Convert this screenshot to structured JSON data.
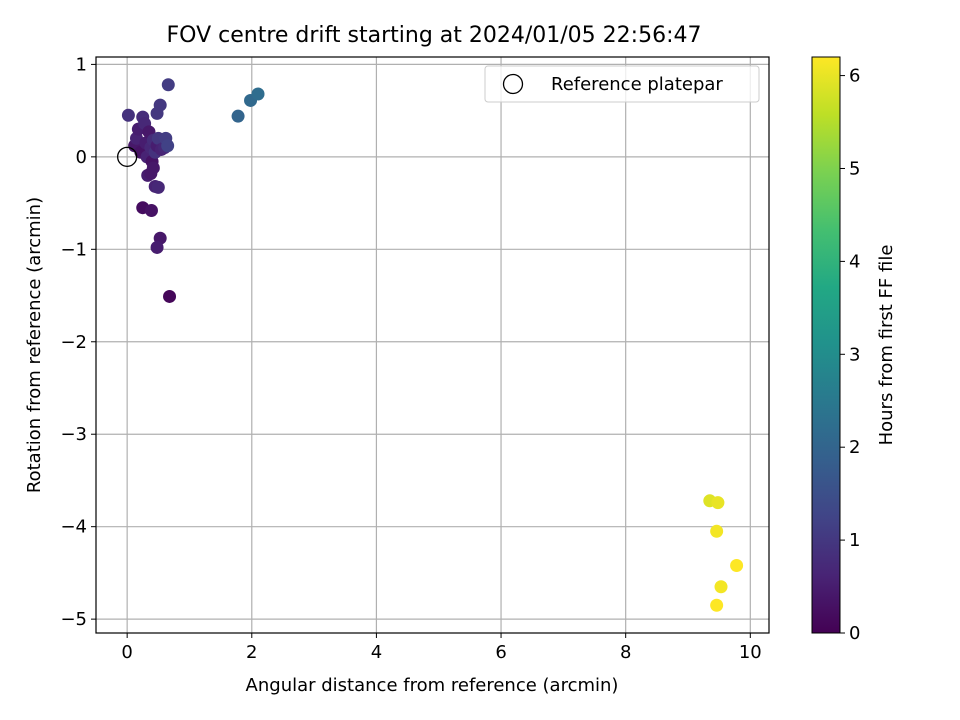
{
  "chart_data": {
    "type": "scatter",
    "title": "FOV centre drift starting at 2024/01/05 22:56:47",
    "xlabel": "Angular distance from reference (arcmin)",
    "ylabel": "Rotation from reference (arcmin)",
    "xlim": [
      -0.5,
      10.3
    ],
    "ylim": [
      -5.15,
      1.08
    ],
    "xticks": [
      0,
      2,
      4,
      6,
      8,
      10
    ],
    "yticks": [
      1,
      0,
      -1,
      -2,
      -3,
      -4,
      -5
    ],
    "grid": true,
    "colormap": "viridis",
    "colorbar": {
      "label": "Hours from first FF file",
      "range": [
        0,
        6.2
      ],
      "ticks": [
        0,
        1,
        2,
        3,
        4,
        5,
        6
      ]
    },
    "legend": {
      "position": "top-right",
      "entries": [
        {
          "label": "Reference platepar",
          "marker": "open-circle"
        }
      ]
    },
    "reference_point": {
      "x": 0,
      "y": 0
    },
    "points": [
      {
        "x": 0.02,
        "y": 0.45,
        "t": 0.9
      },
      {
        "x": 0.12,
        "y": 0.12,
        "t": 0.4
      },
      {
        "x": 0.15,
        "y": 0.2,
        "t": 0.6
      },
      {
        "x": 0.18,
        "y": 0.3,
        "t": 0.5
      },
      {
        "x": 0.22,
        "y": 0.05,
        "t": 0.3
      },
      {
        "x": 0.25,
        "y": 0.43,
        "t": 0.8
      },
      {
        "x": 0.28,
        "y": 0.36,
        "t": 0.7
      },
      {
        "x": 0.3,
        "y": 0.15,
        "t": 0.5
      },
      {
        "x": 0.32,
        "y": 0.0,
        "t": 0.6
      },
      {
        "x": 0.35,
        "y": 0.27,
        "t": 0.4
      },
      {
        "x": 0.38,
        "y": 0.1,
        "t": 0.7
      },
      {
        "x": 0.4,
        "y": -0.05,
        "t": 0.3
      },
      {
        "x": 0.42,
        "y": 0.18,
        "t": 0.8
      },
      {
        "x": 0.45,
        "y": 0.05,
        "t": 0.9
      },
      {
        "x": 0.48,
        "y": 0.12,
        "t": 0.5
      },
      {
        "x": 0.5,
        "y": 0.2,
        "t": 1.0
      },
      {
        "x": 0.55,
        "y": 0.08,
        "t": 0.6
      },
      {
        "x": 0.6,
        "y": 0.1,
        "t": 0.7
      },
      {
        "x": 0.62,
        "y": 0.2,
        "t": 1.1
      },
      {
        "x": 0.65,
        "y": 0.12,
        "t": 1.2
      },
      {
        "x": 0.48,
        "y": 0.47,
        "t": 1.0
      },
      {
        "x": 0.53,
        "y": 0.56,
        "t": 1.0
      },
      {
        "x": 0.66,
        "y": 0.78,
        "t": 1.1
      },
      {
        "x": 0.33,
        "y": -0.2,
        "t": 0.5
      },
      {
        "x": 0.38,
        "y": -0.18,
        "t": 0.4
      },
      {
        "x": 0.42,
        "y": -0.12,
        "t": 0.4
      },
      {
        "x": 0.45,
        "y": -0.32,
        "t": 0.6
      },
      {
        "x": 0.5,
        "y": -0.33,
        "t": 0.7
      },
      {
        "x": 0.25,
        "y": -0.55,
        "t": 0.2
      },
      {
        "x": 0.39,
        "y": -0.58,
        "t": 0.3
      },
      {
        "x": 0.53,
        "y": -0.88,
        "t": 0.4
      },
      {
        "x": 0.48,
        "y": -0.98,
        "t": 0.5
      },
      {
        "x": 0.68,
        "y": -1.51,
        "t": 0.1
      },
      {
        "x": 1.78,
        "y": 0.44,
        "t": 2.0
      },
      {
        "x": 1.98,
        "y": 0.61,
        "t": 2.1
      },
      {
        "x": 2.1,
        "y": 0.68,
        "t": 2.2
      },
      {
        "x": 9.35,
        "y": -3.72,
        "t": 5.9
      },
      {
        "x": 9.48,
        "y": -3.74,
        "t": 6.0
      },
      {
        "x": 9.46,
        "y": -4.05,
        "t": 6.1
      },
      {
        "x": 9.78,
        "y": -4.42,
        "t": 6.2
      },
      {
        "x": 9.53,
        "y": -4.65,
        "t": 6.1
      },
      {
        "x": 9.46,
        "y": -4.85,
        "t": 6.2
      }
    ]
  }
}
